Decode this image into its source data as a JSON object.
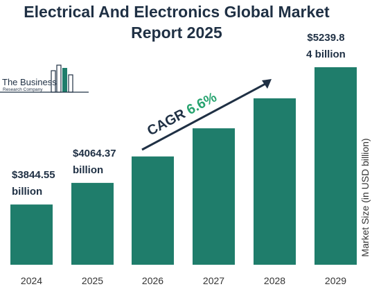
{
  "header": {
    "title_line1": "Electrical And Electronics Global Market",
    "title_line2": "Report 2025"
  },
  "logo": {
    "name": "The Business",
    "sub": "Research Company"
  },
  "colors": {
    "bar": "#1f7d6b",
    "text": "#1f3044",
    "cagr_value": "#27a36f"
  },
  "cagr": {
    "label": "CAGR",
    "value": "6.6%"
  },
  "chart_data": {
    "type": "bar",
    "categories": [
      "2024",
      "2025",
      "2026",
      "2027",
      "2028",
      "2029"
    ],
    "values": [
      3844.55,
      4064.37,
      4333,
      4619,
      4924,
      5239.84
    ],
    "ylabel": "Market Size (in USD billion)",
    "labels": [
      {
        "index": 0,
        "line1": "$3844.55",
        "line2": "billion"
      },
      {
        "index": 1,
        "line1": "$4064.37",
        "line2": "billion"
      },
      {
        "index": 5,
        "line1": "$5239.8",
        "line2": "4 billion"
      }
    ]
  }
}
